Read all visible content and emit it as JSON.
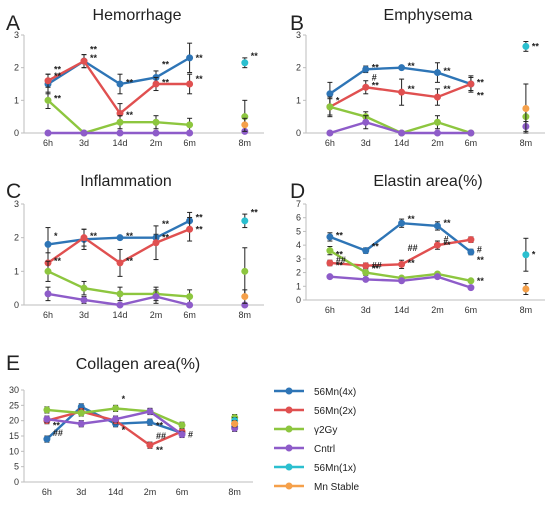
{
  "figure": {
    "panel_letters": [
      "A",
      "B",
      "C",
      "D",
      "E"
    ]
  },
  "colors": {
    "56Mn(4x)": "#2e75b6",
    "56Mn(2x)": "#e05050",
    "γ2Gy": "#8dc63f",
    "Cntrl": "#8e5cc9",
    "56Mn(1x)": "#2bbfcf",
    "Mn Stable": "#f5a04a"
  },
  "legend": {
    "entries": [
      "56Mn(4x)",
      "56Mn(2x)",
      "γ2Gy",
      "Cntrl",
      "56Mn(1x)",
      "Mn Stable"
    ]
  },
  "chart_data": [
    {
      "panel": "A",
      "title": "Hemorrhage",
      "type": "line",
      "categories": [
        "6h",
        "3d",
        "14d",
        "2m",
        "6m",
        "8m"
      ],
      "ylim": [
        0,
        3
      ],
      "yticks": [
        0,
        1,
        2,
        3
      ],
      "series": [
        {
          "name": "56Mn(4x)",
          "values": [
            1.5,
            2.2,
            1.5,
            1.7,
            2.3,
            null
          ],
          "err": [
            0.3,
            0.2,
            0.3,
            0.2,
            0.45,
            null
          ]
        },
        {
          "name": "56Mn(2x)",
          "values": [
            1.6,
            2.2,
            0.6,
            1.5,
            1.5,
            null
          ],
          "err": [
            0.2,
            0.2,
            0.3,
            0.2,
            0.3,
            null
          ]
        },
        {
          "name": "γ2Gy",
          "values": [
            1.0,
            0.0,
            0.33,
            0.33,
            0.25,
            0.5
          ],
          "err": [
            0.25,
            0.0,
            0.2,
            0.2,
            0.2,
            0.5
          ]
        },
        {
          "name": "Cntrl",
          "values": [
            0,
            0,
            0,
            0,
            0,
            0.05
          ],
          "err": [
            0,
            0,
            0,
            0,
            0,
            0
          ]
        },
        {
          "name": "56Mn(1x)",
          "values": [
            null,
            null,
            null,
            null,
            null,
            2.15
          ],
          "err": [
            null,
            null,
            null,
            null,
            null,
            0.15
          ]
        },
        {
          "name": "Mn Stable",
          "values": [
            null,
            null,
            null,
            null,
            null,
            0.25
          ],
          "err": [
            null,
            null,
            null,
            null,
            null,
            0.2
          ]
        }
      ],
      "annotations": [
        {
          "text": "**",
          "x": "6h",
          "y": 1.95
        },
        {
          "text": "**",
          "x": "6h",
          "y": 1.75
        },
        {
          "text": "**",
          "x": "6h",
          "y": 1.05
        },
        {
          "text": "**",
          "x": "3d",
          "y": 2.55
        },
        {
          "text": "**",
          "x": "3d",
          "y": 2.3
        },
        {
          "text": "**",
          "x": "14d",
          "y": 1.55
        },
        {
          "text": "**",
          "x": "14d",
          "y": 0.55
        },
        {
          "text": "**",
          "x": "2m",
          "y": 2.1
        },
        {
          "text": "**",
          "x": "2m",
          "y": 1.55
        },
        {
          "text": "**",
          "x": "6m",
          "y": 2.3
        },
        {
          "text": "**",
          "x": "6m",
          "y": 1.65
        },
        {
          "text": "**",
          "x": "8m",
          "y": 2.35
        }
      ]
    },
    {
      "panel": "B",
      "title": "Emphysema",
      "type": "line",
      "categories": [
        "6h",
        "3d",
        "14d",
        "2m",
        "6m",
        "8m"
      ],
      "ylim": [
        0,
        3
      ],
      "yticks": [
        0,
        1,
        2,
        3
      ],
      "series": [
        {
          "name": "56Mn(4x)",
          "values": [
            1.2,
            1.95,
            2.0,
            1.85,
            1.5,
            null
          ],
          "err": [
            0.35,
            0.1,
            0.05,
            0.3,
            0.25,
            null
          ]
        },
        {
          "name": "56Mn(2x)",
          "values": [
            0.8,
            1.4,
            1.25,
            1.1,
            1.5,
            null
          ],
          "err": [
            0.3,
            0.2,
            0.4,
            0.25,
            0.2,
            null
          ]
        },
        {
          "name": "γ2Gy",
          "values": [
            0.8,
            0.5,
            0.0,
            0.33,
            0.0,
            0.5
          ],
          "err": [
            0.25,
            0.15,
            0.0,
            0.2,
            0.0,
            0.3
          ]
        },
        {
          "name": "Cntrl",
          "values": [
            0.0,
            0.33,
            0.0,
            0.0,
            0.0,
            0.2
          ],
          "err": [
            0.0,
            0.2,
            0.0,
            0.0,
            0.0,
            0.15
          ]
        },
        {
          "name": "56Mn(1x)",
          "values": [
            null,
            null,
            null,
            null,
            null,
            2.65
          ],
          "err": [
            null,
            null,
            null,
            null,
            null,
            0.15
          ]
        },
        {
          "name": "Mn Stable",
          "values": [
            null,
            null,
            null,
            null,
            null,
            0.75
          ],
          "err": [
            null,
            null,
            null,
            null,
            null,
            0.75
          ]
        }
      ],
      "annotations": [
        {
          "text": "#",
          "x": "3d",
          "y": 1.7
        },
        {
          "text": "*",
          "x": "6h",
          "y": 1.0
        },
        {
          "text": "**",
          "x": "3d",
          "y": 2.0
        },
        {
          "text": "**",
          "x": "3d",
          "y": 1.45
        },
        {
          "text": "**",
          "x": "14d",
          "y": 2.05
        },
        {
          "text": "**",
          "x": "14d",
          "y": 1.35
        },
        {
          "text": "**",
          "x": "2m",
          "y": 1.9
        },
        {
          "text": "**",
          "x": "2m",
          "y": 1.35
        },
        {
          "text": "**",
          "x": "6m",
          "y": 1.55
        },
        {
          "text": "**",
          "x": "6m",
          "y": 1.15
        },
        {
          "text": "**",
          "x": "8m",
          "y": 2.65
        }
      ]
    },
    {
      "panel": "C",
      "title": "Inflammation",
      "type": "line",
      "categories": [
        "6h",
        "3d",
        "14d",
        "2m",
        "6m",
        "8m"
      ],
      "ylim": [
        0,
        3
      ],
      "yticks": [
        0,
        1,
        2,
        3
      ],
      "series": [
        {
          "name": "56Mn(4x)",
          "values": [
            1.8,
            1.95,
            2.0,
            2.0,
            2.5,
            null
          ],
          "err": [
            0.5,
            0.3,
            0.05,
            0.1,
            0.25,
            null
          ]
        },
        {
          "name": "56Mn(2x)",
          "values": [
            1.25,
            2.0,
            1.25,
            1.85,
            2.25,
            null
          ],
          "err": [
            0.3,
            0.25,
            0.4,
            0.5,
            0.35,
            null
          ]
        },
        {
          "name": "γ2Gy",
          "values": [
            1.0,
            0.5,
            0.33,
            0.33,
            0.25,
            1.0
          ],
          "err": [
            0.3,
            0.2,
            0.2,
            0.2,
            0.2,
            0.7
          ]
        },
        {
          "name": "Cntrl",
          "values": [
            0.33,
            0.15,
            0.0,
            0.25,
            0.0,
            0.0
          ],
          "err": [
            0.2,
            0.1,
            0.0,
            0.2,
            0.0,
            0.0
          ]
        },
        {
          "name": "56Mn(1x)",
          "values": [
            null,
            null,
            null,
            null,
            null,
            2.5
          ],
          "err": [
            null,
            null,
            null,
            null,
            null,
            0.2
          ]
        },
        {
          "name": "Mn Stable",
          "values": [
            null,
            null,
            null,
            null,
            null,
            0.25
          ],
          "err": [
            null,
            null,
            null,
            null,
            null,
            0.2
          ]
        }
      ],
      "annotations": [
        {
          "text": "*",
          "x": "6h",
          "y": 2.05
        },
        {
          "text": "**",
          "x": "6h",
          "y": 1.3
        },
        {
          "text": "**",
          "x": "3d",
          "y": 2.05
        },
        {
          "text": "**",
          "x": "14d",
          "y": 2.05
        },
        {
          "text": "**",
          "x": "14d",
          "y": 1.3
        },
        {
          "text": "**",
          "x": "2m",
          "y": 2.4
        },
        {
          "text": "**",
          "x": "2m",
          "y": 2.0
        },
        {
          "text": "**",
          "x": "6m",
          "y": 2.6
        },
        {
          "text": "**",
          "x": "6m",
          "y": 2.25
        },
        {
          "text": "**",
          "x": "8m",
          "y": 2.75
        }
      ]
    },
    {
      "panel": "D",
      "title": "Elastin area(%)",
      "type": "line",
      "categories": [
        "6h",
        "3d",
        "14d",
        "2m",
        "6m",
        "8m"
      ],
      "ylim": [
        0,
        7
      ],
      "yticks": [
        0,
        1,
        2,
        3,
        4,
        5,
        6,
        7
      ],
      "series": [
        {
          "name": "56Mn(4x)",
          "values": [
            4.6,
            3.6,
            5.6,
            5.4,
            3.5,
            null
          ],
          "err": [
            0.3,
            0.2,
            0.3,
            0.3,
            0.2,
            null
          ]
        },
        {
          "name": "56Mn(2x)",
          "values": [
            2.7,
            2.5,
            2.6,
            4.0,
            4.4,
            null
          ],
          "err": [
            0.2,
            0.2,
            0.3,
            0.3,
            0.2,
            null
          ]
        },
        {
          "name": "γ2Gy",
          "values": [
            3.6,
            2.0,
            1.6,
            1.9,
            1.4,
            null
          ],
          "err": [
            0.3,
            0.2,
            0.1,
            0.1,
            0.1,
            null
          ]
        },
        {
          "name": "Cntrl",
          "values": [
            1.7,
            1.5,
            1.4,
            1.7,
            0.9,
            null
          ],
          "err": [
            0.1,
            0.1,
            0.1,
            0.1,
            0.1,
            null
          ]
        },
        {
          "name": "56Mn(1x)",
          "values": [
            null,
            null,
            null,
            null,
            null,
            3.3
          ],
          "err": [
            null,
            null,
            null,
            null,
            null,
            1.2
          ]
        },
        {
          "name": "Mn Stable",
          "values": [
            null,
            null,
            null,
            null,
            null,
            0.8
          ],
          "err": [
            null,
            null,
            null,
            null,
            null,
            0.4
          ]
        }
      ],
      "annotations": [
        {
          "text": "**",
          "x": "6h",
          "y": 4.7
        },
        {
          "text": "##",
          "x": "6h",
          "y": 2.9
        },
        {
          "text": "**",
          "x": "6h",
          "y": 3.3
        },
        {
          "text": "**",
          "x": "6h",
          "y": 2.5
        },
        {
          "text": "**",
          "x": "3d",
          "y": 3.9
        },
        {
          "text": "##",
          "x": "3d",
          "y": 2.5
        },
        {
          "text": "**",
          "x": "3d",
          "y": 2.3
        },
        {
          "text": "**",
          "x": "14d",
          "y": 5.9
        },
        {
          "text": "##",
          "x": "14d",
          "y": 3.8
        },
        {
          "text": "**",
          "x": "14d",
          "y": 2.7
        },
        {
          "text": "**",
          "x": "2m",
          "y": 5.6
        },
        {
          "text": "#",
          "x": "2m",
          "y": 4.4
        },
        {
          "text": "**",
          "x": "2m",
          "y": 4.0
        },
        {
          "text": "#",
          "x": "6m",
          "y": 3.7
        },
        {
          "text": "**",
          "x": "6m",
          "y": 2.9
        },
        {
          "text": "**",
          "x": "6m",
          "y": 1.4
        },
        {
          "text": "*",
          "x": "8m",
          "y": 3.3
        }
      ]
    },
    {
      "panel": "E",
      "title": "Collagen area(%)",
      "type": "line",
      "categories": [
        "6h",
        "3d",
        "14d",
        "2m",
        "6m",
        "8m"
      ],
      "ylim": [
        0,
        30
      ],
      "yticks": [
        0,
        5,
        10,
        15,
        20,
        25,
        30
      ],
      "series": [
        {
          "name": "56Mn(4x)",
          "values": [
            14,
            24.5,
            19,
            19.5,
            16,
            18
          ],
          "err": [
            1.0,
            1.0,
            1.0,
            1.0,
            1.0,
            1.0
          ]
        },
        {
          "name": "56Mn(2x)",
          "values": [
            20,
            23,
            20,
            12,
            16.5,
            19
          ],
          "err": [
            1.0,
            1.0,
            1.0,
            1.0,
            1.0,
            1.0
          ]
        },
        {
          "name": "γ2Gy",
          "values": [
            23.5,
            22.5,
            24,
            23,
            18.5,
            21
          ],
          "err": [
            1.0,
            1.0,
            1.0,
            1.0,
            1.0,
            1.0
          ]
        },
        {
          "name": "Cntrl",
          "values": [
            20.5,
            19,
            20.5,
            23,
            15.5,
            17.5
          ],
          "err": [
            1.0,
            1.0,
            1.0,
            1.0,
            1.0,
            1.0
          ]
        },
        {
          "name": "56Mn(1x)",
          "values": [
            null,
            null,
            null,
            null,
            null,
            20
          ],
          "err": [
            null,
            null,
            null,
            null,
            null,
            1.0
          ]
        },
        {
          "name": "Mn Stable",
          "values": [
            null,
            null,
            null,
            null,
            null,
            19
          ],
          "err": [
            null,
            null,
            null,
            null,
            null,
            1.0
          ]
        }
      ],
      "annotations": [
        {
          "text": "**",
          "x": "6h",
          "y": 18.5
        },
        {
          "text": "##",
          "x": "6h",
          "y": 16.0
        },
        {
          "text": "*",
          "x": "14d",
          "y": 27.0
        },
        {
          "text": "*",
          "x": "14d",
          "y": 17.0
        },
        {
          "text": "**",
          "x": "2m",
          "y": 18.5
        },
        {
          "text": "##",
          "x": "2m",
          "y": 15.0
        },
        {
          "text": "**",
          "x": "2m",
          "y": 10.5
        },
        {
          "text": "#",
          "x": "6m",
          "y": 15.5
        }
      ]
    }
  ]
}
